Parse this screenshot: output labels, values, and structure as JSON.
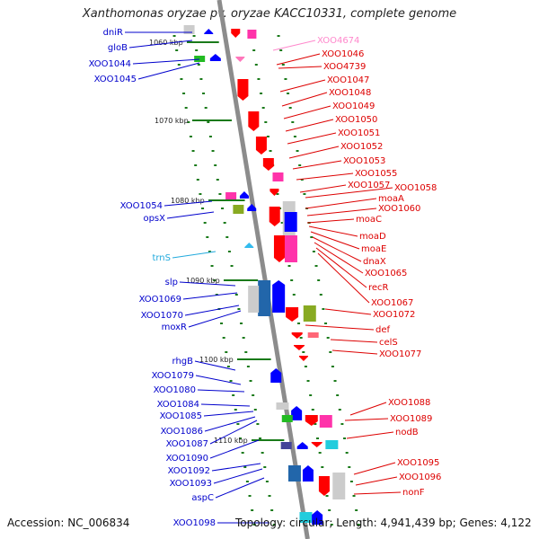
{
  "title": "Xanthomonas oryzae pv. oryzae KACC10331, complete genome",
  "footer": {
    "accession": "Accession: NC_006834",
    "topology": "Topology: circular; Length: 4,941,439 bp; Genes: 4,122"
  },
  "colors": {
    "backbone": "#8c8c8c",
    "left_label": "#0000cc",
    "right_label": "#dd0000",
    "pink_label": "#ff88cc",
    "cyan_label": "#22aadd",
    "tick": "#1a7a1a"
  },
  "kbp_marks": [
    {
      "label": "1060 kbp"
    },
    {
      "label": "1070 kbp"
    },
    {
      "label": "1080 kbp"
    },
    {
      "label": "1090 kbp"
    },
    {
      "label": "1100 kbp"
    },
    {
      "label": "1110 kbp"
    }
  ],
  "left_genes": [
    {
      "name": "dniR"
    },
    {
      "name": "gloB"
    },
    {
      "name": "XOO1044"
    },
    {
      "name": "XOO1045"
    },
    {
      "name": "XOO1054"
    },
    {
      "name": "opsX"
    },
    {
      "name": "trnS"
    },
    {
      "name": "slp"
    },
    {
      "name": "XOO1069"
    },
    {
      "name": "XOO1070"
    },
    {
      "name": "moxR"
    },
    {
      "name": "rhgB"
    },
    {
      "name": "XOO1079"
    },
    {
      "name": "XOO1080"
    },
    {
      "name": "XOO1084"
    },
    {
      "name": "XOO1085"
    },
    {
      "name": "XOO1086"
    },
    {
      "name": "XOO1087"
    },
    {
      "name": "XOO1090"
    },
    {
      "name": "XOO1092"
    },
    {
      "name": "XOO1093"
    },
    {
      "name": "aspC"
    },
    {
      "name": "XOO1098"
    }
  ],
  "right_genes": [
    {
      "name": "XOO4674"
    },
    {
      "name": "XOO1046"
    },
    {
      "name": "XOO4739"
    },
    {
      "name": "XOO1047"
    },
    {
      "name": "XOO1048"
    },
    {
      "name": "XOO1049"
    },
    {
      "name": "XOO1050"
    },
    {
      "name": "XOO1051"
    },
    {
      "name": "XOO1052"
    },
    {
      "name": "XOO1053"
    },
    {
      "name": "XOO1055"
    },
    {
      "name": "XOO1057"
    },
    {
      "name": "XOO1058"
    },
    {
      "name": "moaA"
    },
    {
      "name": "XOO1060"
    },
    {
      "name": "moaC"
    },
    {
      "name": "moaD"
    },
    {
      "name": "moaE"
    },
    {
      "name": "dnaX"
    },
    {
      "name": "XOO1065"
    },
    {
      "name": "recR"
    },
    {
      "name": "XOO1067"
    },
    {
      "name": "XOO1072"
    },
    {
      "name": "def"
    },
    {
      "name": "celS"
    },
    {
      "name": "XOO1077"
    },
    {
      "name": "XOO1088"
    },
    {
      "name": "XOO1089"
    },
    {
      "name": "nodB"
    },
    {
      "name": "XOO1095"
    },
    {
      "name": "XOO1096"
    },
    {
      "name": "nonF"
    }
  ]
}
